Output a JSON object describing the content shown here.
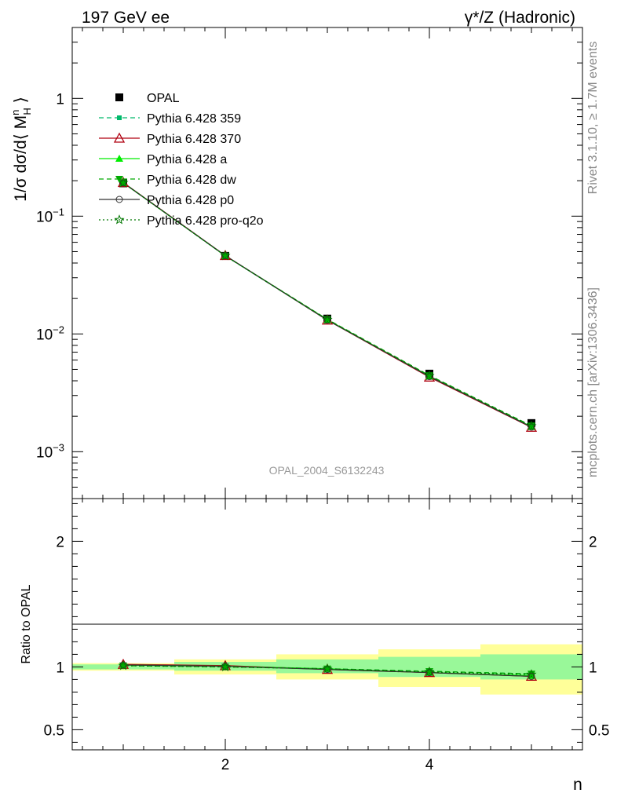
{
  "header": {
    "left_title": "197 GeV ee",
    "right_title": "γ*/Z (Hadronic)"
  },
  "side_labels": {
    "rivet": "Rivet 3.1.10, ≥ 1.7M events",
    "mcplots": "mcplots.cern.ch [arXiv:1306.3436]"
  },
  "watermark": "OPAL_2004_S6132243",
  "chart_data": [
    {
      "panel": "main",
      "type": "line",
      "yscale": "log",
      "ylabel": "1/σ dσ/d⟨ M_H^n ⟩",
      "xlabel": "",
      "xlim": [
        0.5,
        5.5
      ],
      "ylim": [
        0.0004,
        4
      ],
      "x": [
        1,
        2,
        3,
        4,
        5
      ],
      "reference": {
        "name": "OPAL",
        "values": [
          0.19,
          0.046,
          0.0135,
          0.0046,
          0.00175
        ],
        "color": "#000000",
        "marker": "square"
      },
      "series": [
        {
          "name": "Pythia 6.428 359",
          "values": [
            0.192,
            0.046,
            0.0131,
            0.0044,
            0.00165
          ],
          "color": "#00b96b",
          "dash": "6,4",
          "marker": "square-small"
        },
        {
          "name": "Pythia 6.428 370",
          "values": [
            0.193,
            0.0463,
            0.0131,
            0.0043,
            0.00161
          ],
          "color": "#b00010",
          "dash": "",
          "marker": "triangle-open"
        },
        {
          "name": "Pythia 6.428 a",
          "values": [
            0.192,
            0.0461,
            0.0132,
            0.00438,
            0.00163
          ],
          "color": "#00ee00",
          "dash": "",
          "marker": "triangle"
        },
        {
          "name": "Pythia 6.428 dw",
          "values": [
            0.192,
            0.0461,
            0.0133,
            0.00444,
            0.00166
          ],
          "color": "#00aa00",
          "dash": "6,4",
          "marker": "triangle-down"
        },
        {
          "name": "Pythia 6.428 p0",
          "values": [
            0.192,
            0.0462,
            0.0131,
            0.00435,
            0.00162
          ],
          "color": "#333333",
          "dash": "",
          "marker": "circle-open"
        },
        {
          "name": "Pythia 6.428 pro-q2o",
          "values": [
            0.192,
            0.0461,
            0.0132,
            0.0044,
            0.00165
          ],
          "color": "#007700",
          "dash": "2,3",
          "marker": "star-open"
        }
      ]
    },
    {
      "panel": "ratio",
      "type": "line",
      "ylabel": "Ratio to OPAL",
      "xlabel": "n",
      "xlim": [
        0.5,
        5.5
      ],
      "ylim": [
        0.34,
        2.34
      ],
      "xticks": [
        2,
        4
      ],
      "yticks": [
        0.5,
        1,
        2
      ],
      "x": [
        1,
        2,
        3,
        4,
        5
      ],
      "bands": {
        "bin_edges": [
          0.5,
          1.5,
          2.5,
          3.5,
          4.5,
          5.5
        ],
        "inner": [
          [
            0.98,
            1.02
          ],
          [
            0.97,
            1.04
          ],
          [
            0.95,
            1.06
          ],
          [
            0.92,
            1.08
          ],
          [
            0.9,
            1.1
          ]
        ],
        "outer": [
          [
            0.97,
            1.03
          ],
          [
            0.94,
            1.06
          ],
          [
            0.9,
            1.1
          ],
          [
            0.84,
            1.14
          ],
          [
            0.78,
            1.18
          ]
        ],
        "inner_color": "#99f899",
        "outer_color": "#ffff99"
      },
      "series": [
        {
          "name": "Pythia 6.428 359",
          "values": [
            1.01,
            1.005,
            0.985,
            0.965,
            0.945
          ],
          "color": "#00b96b",
          "dash": "6,4",
          "marker": "square-small"
        },
        {
          "name": "Pythia 6.428 370",
          "values": [
            1.02,
            1.01,
            0.98,
            0.955,
            0.925
          ],
          "color": "#b00010",
          "dash": "",
          "marker": "triangle-open"
        },
        {
          "name": "Pythia 6.428 a",
          "values": [
            1.015,
            1.005,
            0.985,
            0.955,
            0.93
          ],
          "color": "#00ee00",
          "dash": "",
          "marker": "triangle"
        },
        {
          "name": "Pythia 6.428 dw",
          "values": [
            1.01,
            1.0,
            0.985,
            0.965,
            0.945
          ],
          "color": "#00aa00",
          "dash": "6,4",
          "marker": "triangle-down"
        },
        {
          "name": "Pythia 6.428 p0",
          "values": [
            1.015,
            1.005,
            0.98,
            0.955,
            0.925
          ],
          "color": "#333333",
          "dash": "",
          "marker": "circle-open"
        },
        {
          "name": "Pythia 6.428 pro-q2o",
          "values": [
            1.01,
            1.0,
            0.985,
            0.96,
            0.94
          ],
          "color": "#007700",
          "dash": "2,3",
          "marker": "star-open"
        }
      ]
    }
  ]
}
